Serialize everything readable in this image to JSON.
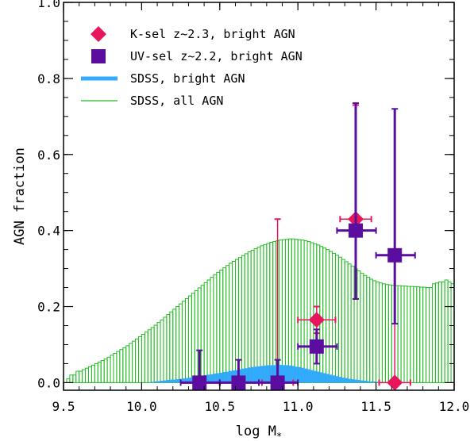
{
  "chart_data": {
    "type": "scatter",
    "xlabel": "log M",
    "xlabel_sub": "*",
    "ylabel": "AGN fraction",
    "xlim": [
      9.5,
      12.0
    ],
    "ylim": [
      -0.02,
      1.0
    ],
    "xticks": [
      9.5,
      10.0,
      10.5,
      11.0,
      11.5,
      12.0
    ],
    "yticks": [
      0.0,
      0.2,
      0.4,
      0.6,
      0.8,
      1.0
    ],
    "xtick_labels": [
      "9.5",
      "10.0",
      "10.5",
      "11.0",
      "11.5",
      "12.0"
    ],
    "ytick_labels": [
      "0.0",
      "0.2",
      "0.4",
      "0.6",
      "0.8",
      "1.0"
    ],
    "legend_position": "top-left",
    "colors": {
      "ksel": "#e8175d",
      "uvsel": "#5a0d9e",
      "sdss_bright": "#33aaff",
      "sdss_all": "#22bb22"
    },
    "series": [
      {
        "name": "K-sel z~2.3, bright AGN",
        "marker": "diamond",
        "points": [
          {
            "x": 10.87,
            "y": 0.0,
            "xlo": 10.77,
            "xhi": 10.97,
            "ylo": 0.0,
            "yhi": 0.43
          },
          {
            "x": 11.12,
            "y": 0.165,
            "xlo": 11.0,
            "xhi": 11.24,
            "ylo": 0.13,
            "yhi": 0.2
          },
          {
            "x": 11.37,
            "y": 0.43,
            "xlo": 11.27,
            "xhi": 11.47,
            "ylo": 0.22,
            "yhi": 0.73
          },
          {
            "x": 11.62,
            "y": 0.0,
            "xlo": 11.52,
            "xhi": 11.72,
            "ylo": 0.0,
            "yhi": 0.33
          }
        ]
      },
      {
        "name": "UV-sel z~2.2, bright AGN",
        "marker": "square",
        "points": [
          {
            "x": 10.37,
            "y": 0.0,
            "xlo": 10.25,
            "xhi": 10.5,
            "ylo": 0.0,
            "yhi": 0.085
          },
          {
            "x": 10.62,
            "y": 0.0,
            "xlo": 10.5,
            "xhi": 10.75,
            "ylo": 0.0,
            "yhi": 0.06
          },
          {
            "x": 10.87,
            "y": 0.0,
            "xlo": 10.75,
            "xhi": 11.0,
            "ylo": 0.0,
            "yhi": 0.06
          },
          {
            "x": 11.12,
            "y": 0.095,
            "xlo": 11.0,
            "xhi": 11.25,
            "ylo": 0.05,
            "yhi": 0.14
          },
          {
            "x": 11.37,
            "y": 0.4,
            "xlo": 11.25,
            "xhi": 11.5,
            "ylo": 0.22,
            "yhi": 0.735
          },
          {
            "x": 11.62,
            "y": 0.335,
            "xlo": 11.5,
            "xhi": 11.75,
            "ylo": 0.155,
            "yhi": 0.72
          }
        ]
      },
      {
        "name": "SDSS, bright AGN",
        "type": "histogram",
        "bin_width": 0.02,
        "x_start": 9.5,
        "values": [
          0.0,
          0.0,
          0.0,
          0.0,
          0.0,
          0.0,
          0.0,
          0.0,
          0.0,
          0.0,
          0.0,
          0.0,
          0.0,
          0.0,
          0.0,
          0.0,
          0.0,
          0.0,
          0.0,
          0.0,
          0.0,
          0.0,
          0.0,
          0.0,
          0.0,
          0.0,
          0.0,
          0.001,
          0.002,
          0.003,
          0.004,
          0.005,
          0.006,
          0.007,
          0.008,
          0.008,
          0.009,
          0.01,
          0.011,
          0.012,
          0.013,
          0.014,
          0.016,
          0.017,
          0.018,
          0.02,
          0.021,
          0.022,
          0.024,
          0.025,
          0.026,
          0.028,
          0.029,
          0.031,
          0.032,
          0.033,
          0.035,
          0.037,
          0.038,
          0.04,
          0.041,
          0.042,
          0.043,
          0.044,
          0.045,
          0.046,
          0.046,
          0.046,
          0.047,
          0.047,
          0.046,
          0.046,
          0.045,
          0.044,
          0.042,
          0.041,
          0.039,
          0.037,
          0.035,
          0.033,
          0.031,
          0.029,
          0.027,
          0.025,
          0.023,
          0.021,
          0.019,
          0.017,
          0.015,
          0.013,
          0.012,
          0.01,
          0.009,
          0.008,
          0.007,
          0.006,
          0.005,
          0.004,
          0.003,
          0.003,
          0.002,
          0.002,
          0.001,
          0.001,
          0.001,
          0.0,
          0.0,
          0.0,
          0.0,
          0.0,
          0.0,
          0.0,
          0.0,
          0.0,
          0.0,
          0.0,
          0.0,
          0.0,
          0.0,
          0.0,
          0.0,
          0.0,
          0.0,
          0.0,
          0.0
        ]
      },
      {
        "name": "SDSS, all AGN",
        "type": "histogram",
        "bin_width": 0.02,
        "x_start": 9.5,
        "values": [
          0.0,
          0.01,
          0.02,
          0.02,
          0.03,
          0.03,
          0.034,
          0.038,
          0.042,
          0.046,
          0.05,
          0.054,
          0.058,
          0.062,
          0.067,
          0.072,
          0.077,
          0.082,
          0.087,
          0.092,
          0.097,
          0.103,
          0.109,
          0.115,
          0.121,
          0.127,
          0.133,
          0.139,
          0.145,
          0.151,
          0.158,
          0.165,
          0.172,
          0.179,
          0.186,
          0.193,
          0.2,
          0.207,
          0.214,
          0.221,
          0.228,
          0.235,
          0.242,
          0.249,
          0.256,
          0.263,
          0.27,
          0.277,
          0.284,
          0.29,
          0.296,
          0.302,
          0.308,
          0.314,
          0.319,
          0.324,
          0.329,
          0.334,
          0.339,
          0.344,
          0.348,
          0.352,
          0.356,
          0.36,
          0.363,
          0.366,
          0.369,
          0.371,
          0.373,
          0.375,
          0.376,
          0.377,
          0.378,
          0.378,
          0.377,
          0.376,
          0.375,
          0.373,
          0.371,
          0.368,
          0.365,
          0.362,
          0.358,
          0.354,
          0.35,
          0.345,
          0.34,
          0.335,
          0.33,
          0.324,
          0.318,
          0.312,
          0.306,
          0.3,
          0.294,
          0.288,
          0.282,
          0.277,
          0.272,
          0.268,
          0.265,
          0.262,
          0.26,
          0.258,
          0.257,
          0.256,
          0.255,
          0.255,
          0.254,
          0.254,
          0.253,
          0.253,
          0.252,
          0.252,
          0.251,
          0.251,
          0.25,
          0.25,
          0.26,
          0.262,
          0.265,
          0.265,
          0.27,
          0.265,
          0.26
        ]
      }
    ]
  }
}
